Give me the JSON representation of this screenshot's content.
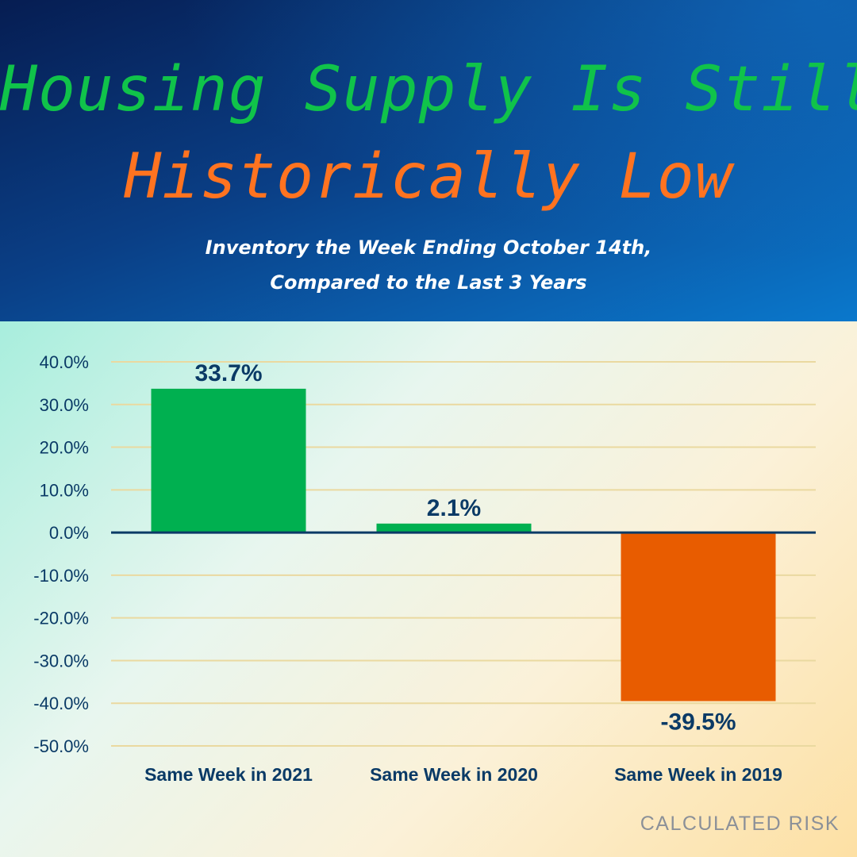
{
  "header": {
    "title_line1": "Housing Supply Is Still",
    "title_line2": "Historically Low",
    "subtitle_line1": "Inventory the Week Ending October 14th,",
    "subtitle_line2": "Compared to the Last 3 Years"
  },
  "source": "CALCULATED RISK",
  "colors": {
    "title_green": "#10c34a",
    "title_orange": "#ff7320",
    "positive_bar": "#00b050",
    "negative_bar": "#e85c00",
    "label_text": "#0a3a66",
    "gridline": "#ead9a0",
    "zero_line": "#0a3a66"
  },
  "chart_data": {
    "type": "bar",
    "categories": [
      "Same Week in 2021",
      "Same Week in 2020",
      "Same Week in 2019"
    ],
    "values": [
      33.7,
      2.1,
      -39.5
    ],
    "data_labels": [
      "33.7%",
      "2.1%",
      "-39.5%"
    ],
    "title": "Housing Supply Is Still Historically Low",
    "xlabel": "",
    "ylabel": "",
    "ylim": [
      -50,
      40
    ],
    "yticks": [
      40,
      30,
      20,
      10,
      0,
      -10,
      -20,
      -30,
      -40,
      -50
    ],
    "ytick_labels": [
      "40.0%",
      "30.0%",
      "20.0%",
      "10.0%",
      "0.0%",
      "-10.0%",
      "-20.0%",
      "-30.0%",
      "-40.0%",
      "-50.0%"
    ],
    "grid": true,
    "legend": "none"
  }
}
